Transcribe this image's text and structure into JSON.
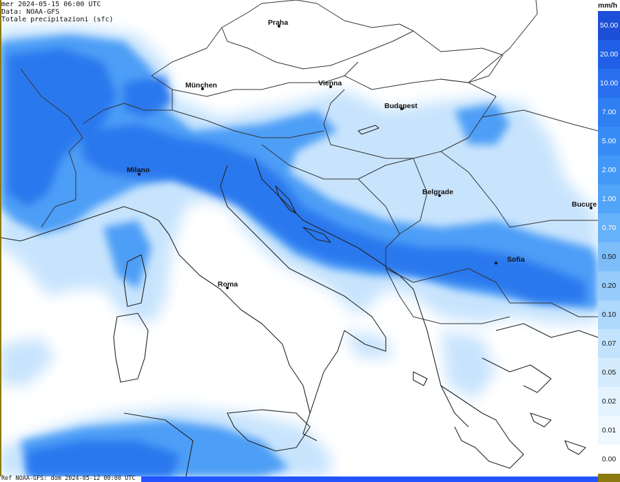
{
  "header": {
    "date_line": "mer 2024-05-15 06:00 UTC",
    "source_line": "Data: NOAA-GFS",
    "field_line": "Totale precipitazioni (sfc)"
  },
  "footer": {
    "ref_line": "Ref NOAA-GFS: dom 2024-05-12 00:00 UTC"
  },
  "legend": {
    "unit": "mm/h",
    "levels": [
      {
        "label": "50.00",
        "color": "#1d4fd8",
        "text_color": "#ffffff"
      },
      {
        "label": "20.00",
        "color": "#2160e6",
        "text_color": "#ffffff"
      },
      {
        "label": "10.00",
        "color": "#2870ee",
        "text_color": "#ffffff"
      },
      {
        "label": "7.00",
        "color": "#2f7ef2",
        "text_color": "#ffffff"
      },
      {
        "label": "5.00",
        "color": "#388cf5",
        "text_color": "#ffffff"
      },
      {
        "label": "2.00",
        "color": "#4398f7",
        "text_color": "#ffffff"
      },
      {
        "label": "1.00",
        "color": "#52a4f8",
        "text_color": "#ffffff"
      },
      {
        "label": "0.70",
        "color": "#66b1f9",
        "text_color": "#ffffff"
      },
      {
        "label": "0.50",
        "color": "#7dbefa",
        "text_color": "#111111"
      },
      {
        "label": "0.20",
        "color": "#96cbfb",
        "text_color": "#111111"
      },
      {
        "label": "0.10",
        "color": "#aed8fc",
        "text_color": "#111111"
      },
      {
        "label": "0.07",
        "color": "#c3e3fd",
        "text_color": "#111111"
      },
      {
        "label": "0.05",
        "color": "#d5ecfe",
        "text_color": "#111111"
      },
      {
        "label": "0.02",
        "color": "#e4f3fe",
        "text_color": "#111111"
      },
      {
        "label": "0.01",
        "color": "#f0f8ff",
        "text_color": "#111111"
      },
      {
        "label": "0.00",
        "color": "#ffffff",
        "text_color": "#111111"
      }
    ]
  },
  "cities": [
    {
      "name": "Praha"
    },
    {
      "name": "München"
    },
    {
      "name": "Vienna"
    },
    {
      "name": "Budapest"
    },
    {
      "name": "Milano"
    },
    {
      "name": "Belgrade"
    },
    {
      "name": "Bucure"
    },
    {
      "name": "Sofia"
    },
    {
      "name": "Roma"
    }
  ],
  "colors": {
    "heavy": "#2a78ee",
    "moderate": "#4d9ef6",
    "light": "#8cc4fa",
    "trace": "#c8e4fd",
    "coastline": "#222222",
    "border": "#333333"
  }
}
